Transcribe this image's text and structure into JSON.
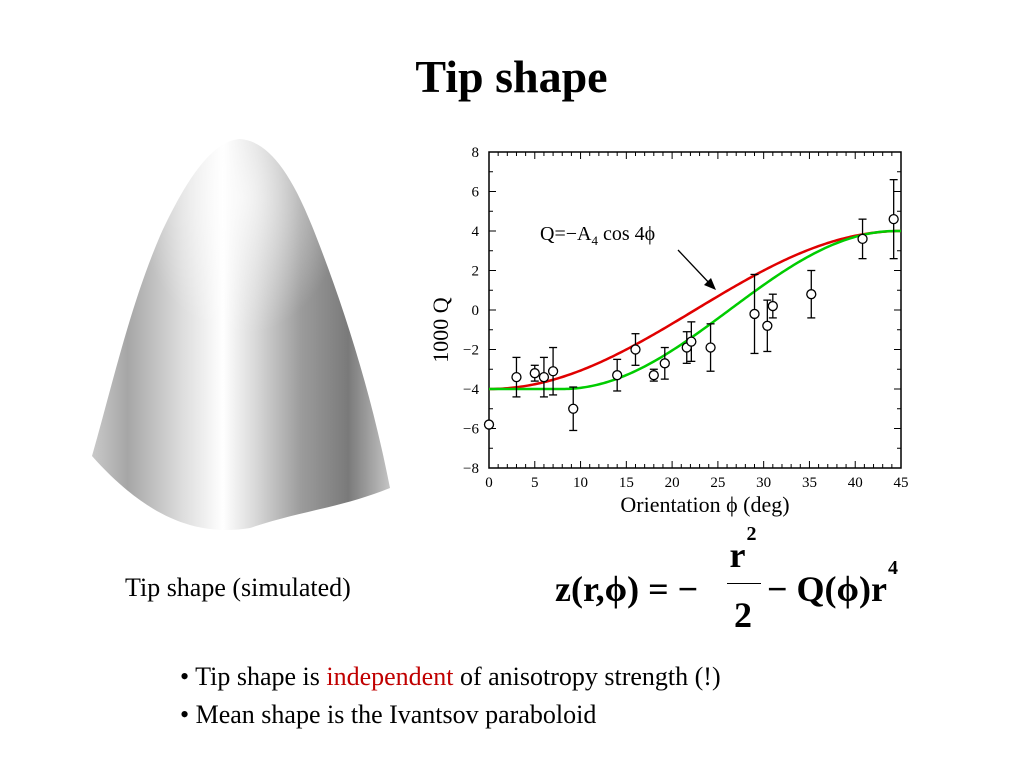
{
  "slide": {
    "title": "Tip shape",
    "caption": "Tip shape (simulated)"
  },
  "formula": {
    "lhs": "z(r,ϕ) = −",
    "numerator": "r",
    "numerator_exp": "2",
    "denominator": "2",
    "rhs": "− Q(ϕ)r",
    "rhs_exp": "4"
  },
  "bullets": [
    {
      "prefix": "• Tip shape is ",
      "highlight": "independent",
      "suffix": " of anisotropy strength (!)"
    },
    {
      "text": "• Mean shape is the Ivantsov paraboloid"
    }
  ],
  "colors": {
    "theory_curve": "#e00000",
    "fit_curve": "#00cc00",
    "highlight_text": "#c00000"
  },
  "chart_data": {
    "type": "scatter",
    "xlabel": "Orientation ϕ (deg)",
    "ylabel": "1000 Q",
    "xlim": [
      0,
      45
    ],
    "ylim": [
      -8,
      8
    ],
    "xticks": [
      "0",
      "5",
      "10",
      "15",
      "20",
      "25",
      "30",
      "35",
      "40",
      "45"
    ],
    "yticks": [
      "−8",
      "−6",
      "−4",
      "−2",
      "0",
      "2",
      "4",
      "6",
      "8"
    ],
    "annotation": {
      "main": "Q=−A",
      "sub": "4",
      "tail": " cos 4ϕ"
    },
    "grid": false,
    "points": [
      {
        "x": 0,
        "y": -5.8,
        "err": 0
      },
      {
        "x": 3,
        "y": -3.4,
        "err": 1.0
      },
      {
        "x": 5,
        "y": -3.2,
        "err": 0.4
      },
      {
        "x": 6,
        "y": -3.4,
        "err": 1.0
      },
      {
        "x": 7,
        "y": -3.1,
        "err": 1.2
      },
      {
        "x": 9.2,
        "y": -5.0,
        "err": 1.1
      },
      {
        "x": 14,
        "y": -3.3,
        "err": 0.8
      },
      {
        "x": 16,
        "y": -2.0,
        "err": 0.8
      },
      {
        "x": 18,
        "y": -3.3,
        "err": 0.3
      },
      {
        "x": 19.2,
        "y": -2.7,
        "err": 0.8
      },
      {
        "x": 21.6,
        "y": -1.9,
        "err": 0.8
      },
      {
        "x": 22.1,
        "y": -1.6,
        "err": 1.0
      },
      {
        "x": 24.2,
        "y": -1.9,
        "err": 1.2
      },
      {
        "x": 29,
        "y": -0.2,
        "err": 2.0
      },
      {
        "x": 30.4,
        "y": -0.8,
        "err": 1.3
      },
      {
        "x": 31,
        "y": 0.2,
        "err": 0.6
      },
      {
        "x": 35.2,
        "y": 0.8,
        "err": 1.2
      },
      {
        "x": 40.8,
        "y": 3.6,
        "err": 1.0
      },
      {
        "x": 44.2,
        "y": 4.6,
        "err": 2.0
      }
    ],
    "series": [
      {
        "type": "line",
        "color": "#e00000",
        "equation": "Q = -4 cos 4ϕ (x1000)",
        "A": 4.0,
        "offset": 0
      },
      {
        "type": "line",
        "color": "#00cc00",
        "equation": "fit",
        "A": 4.0,
        "offset": 8
      }
    ]
  }
}
